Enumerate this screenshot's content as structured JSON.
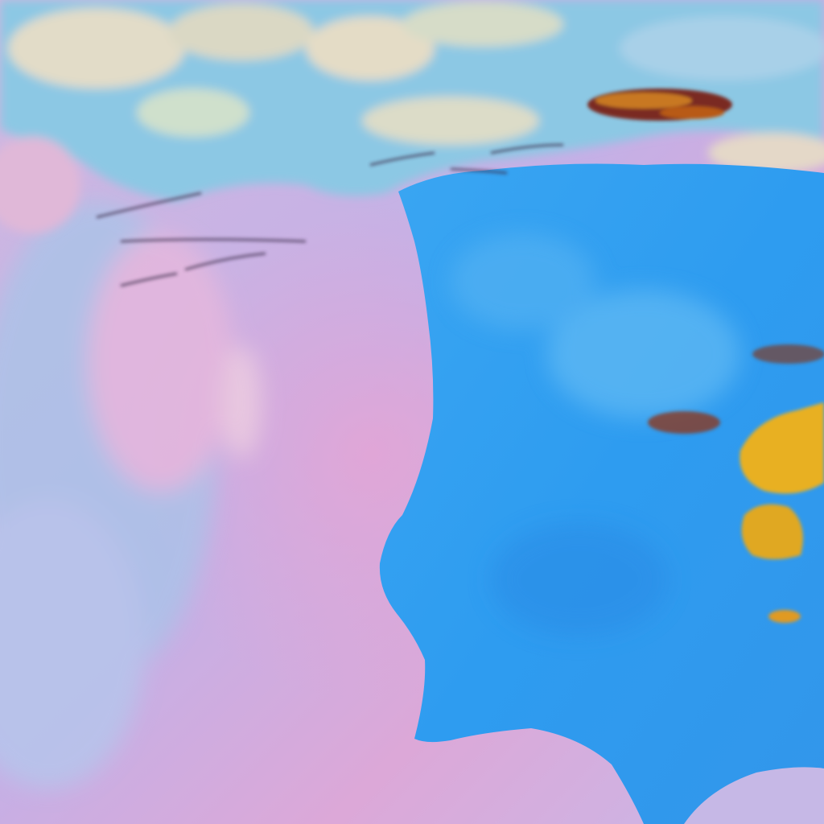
{
  "image": {
    "subject": "false-color-satellite-view",
    "colors": {
      "ocean": "#c9b2e2",
      "ocean_pink": "#e0a8d8",
      "land": "#2f9cf0",
      "land_light": "#5cb8f4",
      "cloud_low": "#d8e4d8",
      "cloud_cyan": "#9ad8e8",
      "cloud_high": "#e8b020",
      "cloud_dark": "#7a2a20"
    }
  }
}
